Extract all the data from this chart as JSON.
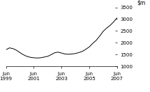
{
  "ylim": [
    1000,
    3500
  ],
  "yticks": [
    1000,
    1500,
    2000,
    2500,
    3000,
    3500
  ],
  "xtick_labels": [
    "Jun\n1999",
    "Jun\n2001",
    "Jun\n2003",
    "Jun\n2005",
    "Jun\n2007"
  ],
  "line_color": "#000000",
  "bg_color": "#ffffff",
  "x": [
    0,
    0.5,
    1,
    1.5,
    2,
    2.5,
    3,
    3.5,
    4,
    4.5,
    5,
    5.5,
    6,
    6.5,
    7,
    7.5,
    8,
    8.5,
    9,
    9.5,
    10,
    10.5,
    11,
    11.5,
    12,
    12.5,
    13,
    13.5,
    14,
    14.5,
    15,
    15.5,
    16
  ],
  "y": [
    1700,
    1780,
    1750,
    1680,
    1580,
    1490,
    1420,
    1380,
    1360,
    1350,
    1360,
    1390,
    1420,
    1490,
    1570,
    1600,
    1560,
    1520,
    1510,
    1520,
    1540,
    1580,
    1630,
    1720,
    1820,
    1970,
    2100,
    2280,
    2480,
    2620,
    2730,
    2880,
    3050
  ],
  "figsize": [
    2.15,
    1.32
  ],
  "dpi": 100,
  "line_width": 0.7,
  "tick_fontsize": 5,
  "ylabel_fontsize": 5.5
}
